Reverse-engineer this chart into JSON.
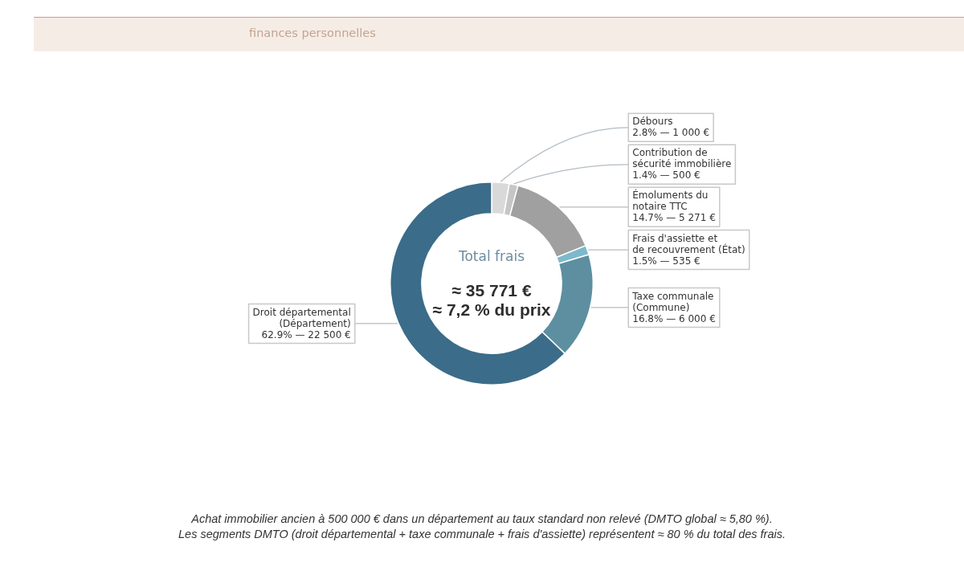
{
  "chart_data": {
    "type": "donut",
    "subtitle": "finances personnelles",
    "categories": [
      "Débours",
      "Contribution de\nsécurité immobilière",
      "Émoluments du\nnotaire TTC",
      "Frais d'assiette et\nde recouvrement (État)",
      "Taxe communale\n(Commune)",
      "Droit départemental\n(Département)"
    ],
    "values": [
      1000,
      500,
      5271,
      535,
      6000,
      22500
    ],
    "colors": [
      "#d9d9d9",
      "#c6c6c6",
      "#a0a0a0",
      "#7db9cc",
      "#5d8fa0",
      "#3b6c89"
    ],
    "value_labels": [
      "2.8% — 1 000 €",
      "1.4% — 500 €",
      "14.7% — 5 271 €",
      "1.5% — 535 €",
      "16.8% — 6 000 €",
      "62.9% — 22 500 €"
    ],
    "annotations": [
      "Total frais",
      "≈ 35 771 €",
      "≈ 7,2 % du prix",
      "Achat immobilier ancien à 500 000 € dans un département au taux standard non relevé (DMTO global ≈ 5,80 %).",
      "Les segments DMTO (droit départemental + taxe communale + frais d'assiette) représentent ≈ 80 % du total des frais."
    ]
  }
}
